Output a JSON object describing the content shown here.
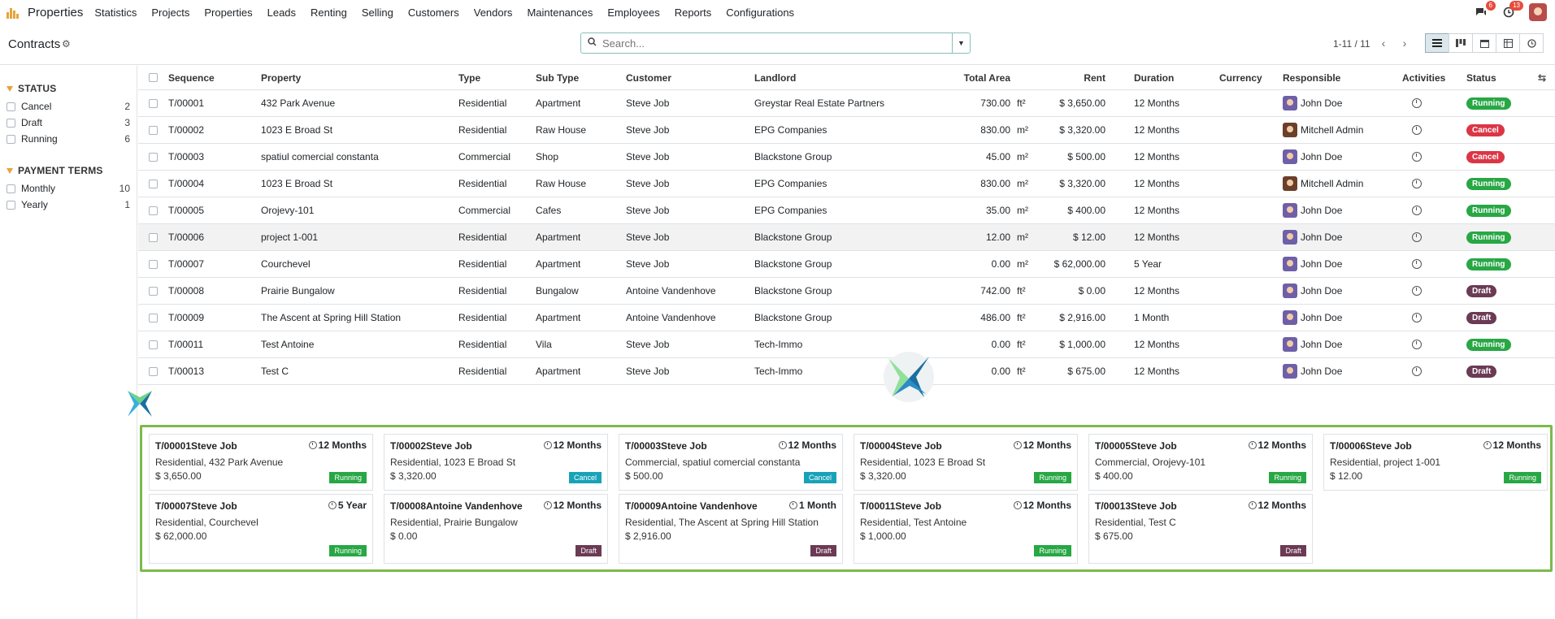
{
  "topnav": {
    "app_name": "Properties",
    "menu": [
      "Statistics",
      "Projects",
      "Properties",
      "Leads",
      "Renting",
      "Selling",
      "Customers",
      "Vendors",
      "Maintenances",
      "Employees",
      "Reports",
      "Configurations"
    ],
    "messages_badge": "6",
    "activities_badge": "13"
  },
  "control_panel": {
    "title": "Contracts",
    "search_placeholder": "Search...",
    "pager": "1-11 / 11"
  },
  "sidebar": {
    "status_title": "STATUS",
    "status": [
      {
        "label": "Cancel",
        "count": "2"
      },
      {
        "label": "Draft",
        "count": "3"
      },
      {
        "label": "Running",
        "count": "6"
      }
    ],
    "terms_title": "PAYMENT TERMS",
    "terms": [
      {
        "label": "Monthly",
        "count": "10"
      },
      {
        "label": "Yearly",
        "count": "1"
      }
    ]
  },
  "table": {
    "headers": [
      "Sequence",
      "Property",
      "Type",
      "Sub Type",
      "Customer",
      "Landlord",
      "Total Area",
      "Rent",
      "Duration",
      "Currency",
      "Responsible",
      "Activities",
      "Status"
    ],
    "rows": [
      {
        "seq": "T/00001",
        "property": "432 Park Avenue",
        "type": "Residential",
        "subtype": "Apartment",
        "customer": "Steve Job",
        "landlord": "Greystar Real Estate Partners",
        "area": "730.00",
        "unit": "ft²",
        "rent": "$ 3,650.00",
        "duration": "12 Months",
        "currency": "",
        "responsible": "John Doe",
        "status": "Running"
      },
      {
        "seq": "T/00002",
        "property": "1023 E Broad St",
        "type": "Residential",
        "subtype": "Raw House",
        "customer": "Steve Job",
        "landlord": "EPG Companies",
        "area": "830.00",
        "unit": "m²",
        "rent": "$ 3,320.00",
        "duration": "12 Months",
        "currency": "",
        "responsible": "Mitchell Admin",
        "status": "Cancel"
      },
      {
        "seq": "T/00003",
        "property": "spatiul comercial constanta",
        "type": "Commercial",
        "subtype": "Shop",
        "customer": "Steve Job",
        "landlord": "Blackstone Group",
        "area": "45.00",
        "unit": "m²",
        "rent": "$ 500.00",
        "duration": "12 Months",
        "currency": "",
        "responsible": "John Doe",
        "status": "Cancel"
      },
      {
        "seq": "T/00004",
        "property": "1023 E Broad St",
        "type": "Residential",
        "subtype": "Raw House",
        "customer": "Steve Job",
        "landlord": "EPG Companies",
        "area": "830.00",
        "unit": "m²",
        "rent": "$ 3,320.00",
        "duration": "12 Months",
        "currency": "",
        "responsible": "Mitchell Admin",
        "status": "Running"
      },
      {
        "seq": "T/00005",
        "property": "Orojevy-101",
        "type": "Commercial",
        "subtype": "Cafes",
        "customer": "Steve Job",
        "landlord": "EPG Companies",
        "area": "35.00",
        "unit": "m²",
        "rent": "$ 400.00",
        "duration": "12 Months",
        "currency": "",
        "responsible": "John Doe",
        "status": "Running"
      },
      {
        "seq": "T/00006",
        "property": "project 1-001",
        "type": "Residential",
        "subtype": "Apartment",
        "customer": "Steve Job",
        "landlord": "Blackstone Group",
        "area": "12.00",
        "unit": "m²",
        "rent": "$ 12.00",
        "duration": "12 Months",
        "currency": "",
        "responsible": "John Doe",
        "status": "Running"
      },
      {
        "seq": "T/00007",
        "property": "Courchevel",
        "type": "Residential",
        "subtype": "Apartment",
        "customer": "Steve Job",
        "landlord": "Blackstone Group",
        "area": "0.00",
        "unit": "m²",
        "rent": "$ 62,000.00",
        "duration": "5 Year",
        "currency": "",
        "responsible": "John Doe",
        "status": "Running"
      },
      {
        "seq": "T/00008",
        "property": "Prairie Bungalow",
        "type": "Residential",
        "subtype": "Bungalow",
        "customer": "Antoine Vandenhove",
        "landlord": "Blackstone Group",
        "area": "742.00",
        "unit": "ft²",
        "rent": "$ 0.00",
        "duration": "12 Months",
        "currency": "",
        "responsible": "John Doe",
        "status": "Draft"
      },
      {
        "seq": "T/00009",
        "property": "The Ascent at Spring Hill Station",
        "type": "Residential",
        "subtype": "Apartment",
        "customer": "Antoine Vandenhove",
        "landlord": "Blackstone Group",
        "area": "486.00",
        "unit": "ft²",
        "rent": "$ 2,916.00",
        "duration": "1 Month",
        "currency": "",
        "responsible": "John Doe",
        "status": "Draft"
      },
      {
        "seq": "T/00011",
        "property": "Test Antoine",
        "type": "Residential",
        "subtype": "Vila",
        "customer": "Steve Job",
        "landlord": "Tech-Immo",
        "area": "0.00",
        "unit": "ft²",
        "rent": "$ 1,000.00",
        "duration": "12 Months",
        "currency": "",
        "responsible": "John Doe",
        "status": "Running"
      },
      {
        "seq": "T/00013",
        "property": "Test C",
        "type": "Residential",
        "subtype": "Apartment",
        "customer": "Steve Job",
        "landlord": "Tech-Immo",
        "area": "0.00",
        "unit": "ft²",
        "rent": "$ 675.00",
        "duration": "12 Months",
        "currency": "",
        "responsible": "John Doe",
        "status": "Draft"
      }
    ]
  },
  "kanban": [
    {
      "title": "T/00001Steve Job",
      "duration": "12 Months",
      "sub": "Residential, 432 Park Avenue",
      "rent": "$ 3,650.00",
      "tag": "Running"
    },
    {
      "title": "T/00002Steve Job",
      "duration": "12 Months",
      "sub": "Residential, 1023 E Broad St",
      "rent": "$ 3,320.00",
      "tag": "Cancel"
    },
    {
      "title": "T/00003Steve Job",
      "duration": "12 Months",
      "sub": "Commercial, spatiul comercial constanta",
      "rent": "$ 500.00",
      "tag": "Cancel"
    },
    {
      "title": "T/00004Steve Job",
      "duration": "12 Months",
      "sub": "Residential, 1023 E Broad St",
      "rent": "$ 3,320.00",
      "tag": "Running"
    },
    {
      "title": "T/00005Steve Job",
      "duration": "12 Months",
      "sub": "Commercial, Orojevy-101",
      "rent": "$ 400.00",
      "tag": "Running"
    },
    {
      "title": "T/00006Steve Job",
      "duration": "12 Months",
      "sub": "Residential, project 1-001",
      "rent": "$ 12.00",
      "tag": "Running"
    },
    {
      "title": "T/00007Steve Job",
      "duration": "5 Year",
      "sub": "Residential, Courchevel",
      "rent": "$ 62,000.00",
      "tag": "Running"
    },
    {
      "title": "T/00008Antoine Vandenhove",
      "duration": "12 Months",
      "sub": "Residential, Prairie Bungalow",
      "rent": "$ 0.00",
      "tag": "Draft"
    },
    {
      "title": "T/00009Antoine Vandenhove",
      "duration": "1 Month",
      "sub": "Residential, The Ascent at Spring Hill Station",
      "rent": "$ 2,916.00",
      "tag": "Draft"
    },
    {
      "title": "T/00011Steve Job",
      "duration": "12 Months",
      "sub": "Residential, Test Antoine",
      "rent": "$ 1,000.00",
      "tag": "Running"
    },
    {
      "title": "T/00013Steve Job",
      "duration": "12 Months",
      "sub": "Residential, Test C",
      "rent": "$ 675.00",
      "tag": "Draft"
    }
  ],
  "colors": {
    "accent": "#e8a33b",
    "running": "#28a745",
    "cancel": "#dc3545",
    "draft": "#6b3a55",
    "highlight_border": "#7cba4c"
  }
}
